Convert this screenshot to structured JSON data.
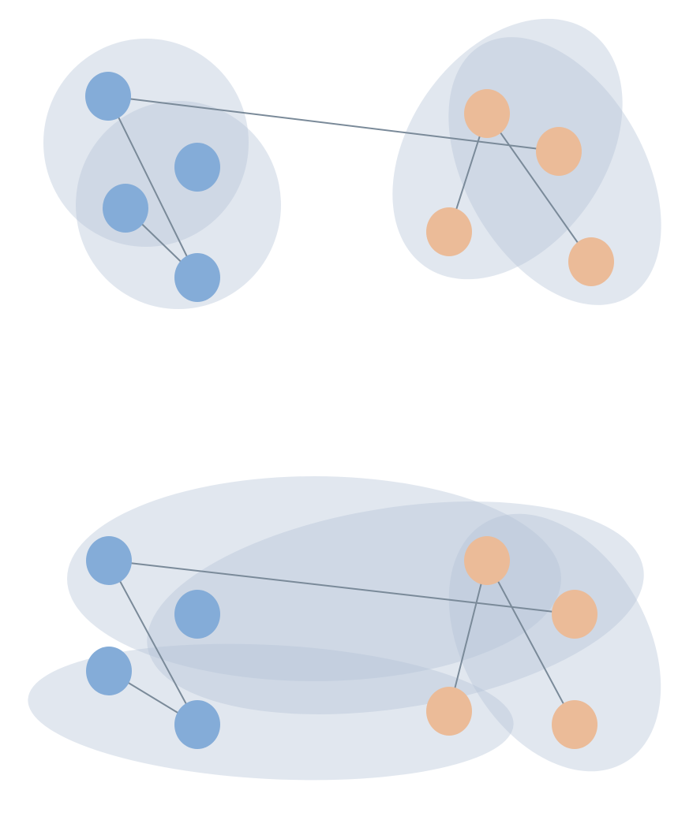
{
  "colors": {
    "background": "#ffffff",
    "cluster_fill": "#b3c3d6",
    "edge": "#7a8a99",
    "node_blue": "#84acd8",
    "node_orange": "#ebbb98"
  },
  "panels": [
    {
      "id": "top",
      "clusters": [
        "c1",
        "c2",
        "c3",
        "c4"
      ],
      "nodes": [
        {
          "id": "b1",
          "group": "blue"
        },
        {
          "id": "b2",
          "group": "blue"
        },
        {
          "id": "b3",
          "group": "blue"
        },
        {
          "id": "b4",
          "group": "blue"
        },
        {
          "id": "o1",
          "group": "orange"
        },
        {
          "id": "o2",
          "group": "orange"
        },
        {
          "id": "o3",
          "group": "orange"
        },
        {
          "id": "o4",
          "group": "orange"
        }
      ],
      "edges": [
        [
          "b1",
          "o2"
        ],
        [
          "b1",
          "b4"
        ],
        [
          "b3",
          "b4"
        ],
        [
          "o1",
          "o3"
        ],
        [
          "o1",
          "o4"
        ]
      ]
    },
    {
      "id": "bottom",
      "clusters": [
        "c1",
        "c2",
        "c3",
        "c4"
      ],
      "nodes": [
        {
          "id": "b1",
          "group": "blue"
        },
        {
          "id": "b2",
          "group": "blue"
        },
        {
          "id": "b3",
          "group": "blue"
        },
        {
          "id": "b4",
          "group": "blue"
        },
        {
          "id": "o1",
          "group": "orange"
        },
        {
          "id": "o2",
          "group": "orange"
        },
        {
          "id": "o3",
          "group": "orange"
        },
        {
          "id": "o4",
          "group": "orange"
        }
      ],
      "edges": [
        [
          "b1",
          "o2"
        ],
        [
          "b1",
          "b4"
        ],
        [
          "b3",
          "b4"
        ],
        [
          "o1",
          "o3"
        ],
        [
          "o1",
          "o4"
        ]
      ]
    }
  ]
}
